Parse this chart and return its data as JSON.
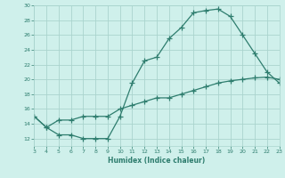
{
  "xlabel": "Humidex (Indice chaleur)",
  "x_curve1": [
    3,
    4,
    5,
    6,
    7,
    8,
    9,
    10,
    11,
    12,
    13,
    14,
    15,
    16,
    17,
    18,
    19,
    20,
    21,
    22,
    23
  ],
  "y_curve1": [
    15,
    13.5,
    12.5,
    12.5,
    12.0,
    12.0,
    12.0,
    15.0,
    19.5,
    22.5,
    23.0,
    25.5,
    27.0,
    29.0,
    29.3,
    29.5,
    28.5,
    26.0,
    23.5,
    21.0,
    19.5
  ],
  "x_curve2": [
    3,
    4,
    5,
    6,
    7,
    8,
    9,
    10,
    11,
    12,
    13,
    14,
    15,
    16,
    17,
    18,
    19,
    20,
    21,
    22,
    23
  ],
  "y_curve2": [
    15,
    13.5,
    14.5,
    14.5,
    15.0,
    15.0,
    15.0,
    16.0,
    16.5,
    17.0,
    17.5,
    17.5,
    18.0,
    18.5,
    19.0,
    19.5,
    19.8,
    20.0,
    20.2,
    20.3,
    20.0
  ],
  "line_color": "#2e7d6e",
  "bg_color": "#cff0eb",
  "grid_color": "#aad4ce",
  "text_color": "#2e7d6e",
  "ylim": [
    11.0,
    30.0
  ],
  "xlim": [
    3,
    23
  ],
  "yticks": [
    12,
    14,
    16,
    18,
    20,
    22,
    24,
    26,
    28,
    30
  ],
  "xticks": [
    3,
    4,
    5,
    6,
    7,
    8,
    9,
    10,
    11,
    12,
    13,
    14,
    15,
    16,
    17,
    18,
    19,
    20,
    21,
    22,
    23
  ],
  "marker": "+",
  "markersize": 4,
  "linewidth": 0.9
}
